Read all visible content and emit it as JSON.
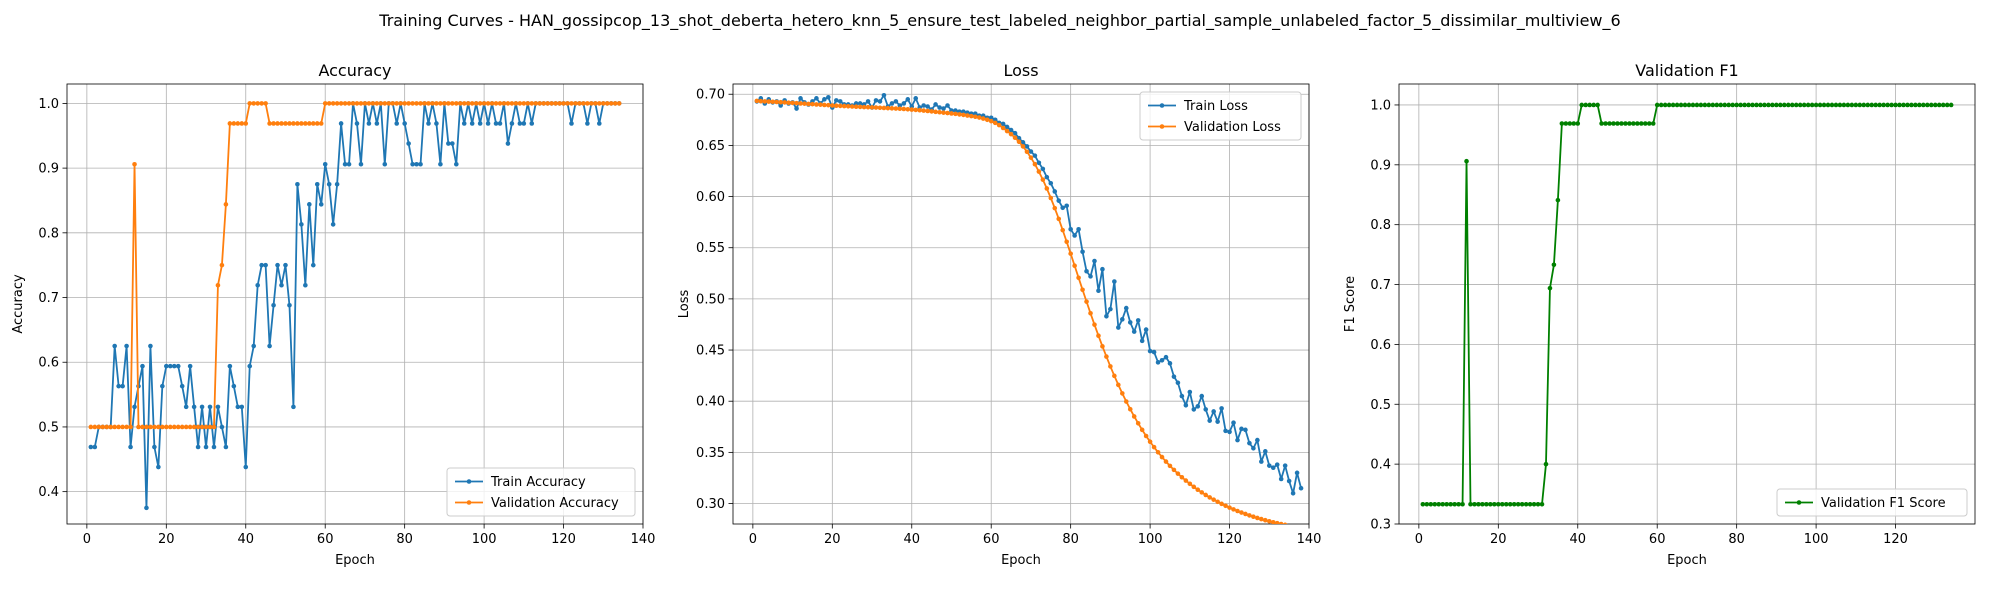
{
  "suptitle": "Training Curves - HAN_gossipcop_13_shot_deberta_hetero_knn_5_ensure_test_labeled_neighbor_partial_sample_unlabeled_factor_5_dissimilar_multiview_6",
  "colors": {
    "train": "#1f77b4",
    "val": "#ff7f0e",
    "f1": "#008000",
    "grid": "#b0b0b0"
  },
  "chart_data": [
    {
      "type": "line",
      "title": "Accuracy",
      "xlabel": "Epoch",
      "ylabel": "Accuracy",
      "xlim": [
        -5,
        140
      ],
      "ylim": [
        0.35,
        1.03
      ],
      "xticks": [
        0,
        20,
        40,
        60,
        80,
        100,
        120,
        140
      ],
      "yticks": [
        0.4,
        0.5,
        0.6,
        0.7,
        0.8,
        0.9,
        1.0
      ],
      "ytick_labels": [
        "0.4",
        "0.5",
        "0.6",
        "0.7",
        "0.8",
        "0.9",
        "1.0"
      ],
      "grid": true,
      "legend": "lower-right",
      "series": [
        {
          "name": "Train Accuracy",
          "color": "#1f77b4",
          "x_start": 1,
          "values": [
            0.469,
            0.469,
            0.5,
            0.5,
            0.5,
            0.5,
            0.625,
            0.563,
            0.563,
            0.625,
            0.469,
            0.531,
            0.563,
            0.594,
            0.375,
            0.625,
            0.469,
            0.438,
            0.563,
            0.594,
            0.594,
            0.594,
            0.594,
            0.563,
            0.531,
            0.594,
            0.531,
            0.469,
            0.531,
            0.469,
            0.531,
            0.469,
            0.531,
            0.5,
            0.469,
            0.594,
            0.563,
            0.531,
            0.531,
            0.438,
            0.594,
            0.625,
            0.719,
            0.75,
            0.75,
            0.625,
            0.688,
            0.75,
            0.719,
            0.75,
            0.688,
            0.531,
            0.875,
            0.813,
            0.719,
            0.844,
            0.75,
            0.875,
            0.844,
            0.906,
            0.875,
            0.813,
            0.875,
            0.969,
            0.906,
            0.906,
            1.0,
            0.969,
            0.906,
            1.0,
            0.969,
            1.0,
            0.969,
            1.0,
            0.906,
            1.0,
            1.0,
            0.969,
            1.0,
            0.969,
            0.938,
            0.906,
            0.906,
            0.906,
            1.0,
            0.969,
            1.0,
            0.969,
            0.906,
            1.0,
            0.938,
            0.938,
            0.906,
            1.0,
            0.969,
            1.0,
            0.969,
            1.0,
            0.969,
            1.0,
            0.969,
            1.0,
            0.969,
            0.969,
            1.0,
            0.938,
            0.969,
            1.0,
            0.969,
            0.969,
            1.0,
            0.969,
            1.0,
            1.0,
            1.0,
            1.0,
            1.0,
            1.0,
            1.0,
            1.0,
            1.0,
            0.969,
            1.0,
            1.0,
            1.0,
            0.969,
            1.0,
            1.0,
            0.969,
            1.0,
            1.0,
            1.0,
            1.0,
            1.0
          ]
        },
        {
          "name": "Validation Accuracy",
          "color": "#ff7f0e",
          "x_start": 1,
          "values": [
            0.5,
            0.5,
            0.5,
            0.5,
            0.5,
            0.5,
            0.5,
            0.5,
            0.5,
            0.5,
            0.5,
            0.906,
            0.5,
            0.5,
            0.5,
            0.5,
            0.5,
            0.5,
            0.5,
            0.5,
            0.5,
            0.5,
            0.5,
            0.5,
            0.5,
            0.5,
            0.5,
            0.5,
            0.5,
            0.5,
            0.5,
            0.5,
            0.719,
            0.75,
            0.844,
            0.969,
            0.969,
            0.969,
            0.969,
            0.969,
            1.0,
            1.0,
            1.0,
            1.0,
            1.0,
            0.969,
            0.969,
            0.969,
            0.969,
            0.969,
            0.969,
            0.969,
            0.969,
            0.969,
            0.969,
            0.969,
            0.969,
            0.969,
            0.969,
            1.0,
            1.0,
            1.0,
            1.0,
            1.0,
            1.0,
            1.0,
            1.0,
            1.0,
            1.0,
            1.0,
            1.0,
            1.0,
            1.0,
            1.0,
            1.0,
            1.0,
            1.0,
            1.0,
            1.0,
            1.0,
            1.0,
            1.0,
            1.0,
            1.0,
            1.0,
            1.0,
            1.0,
            1.0,
            1.0,
            1.0,
            1.0,
            1.0,
            1.0,
            1.0,
            1.0,
            1.0,
            1.0,
            1.0,
            1.0,
            1.0,
            1.0,
            1.0,
            1.0,
            1.0,
            1.0,
            1.0,
            1.0,
            1.0,
            1.0,
            1.0,
            1.0,
            1.0,
            1.0,
            1.0,
            1.0,
            1.0,
            1.0,
            1.0,
            1.0,
            1.0,
            1.0,
            1.0,
            1.0,
            1.0,
            1.0,
            1.0,
            1.0,
            1.0,
            1.0,
            1.0,
            1.0,
            1.0,
            1.0,
            1.0
          ]
        }
      ]
    },
    {
      "type": "line",
      "title": "Loss",
      "xlabel": "Epoch",
      "ylabel": "Loss",
      "xlim": [
        -5,
        140
      ],
      "ylim": [
        0.28,
        0.71
      ],
      "xticks": [
        0,
        20,
        40,
        60,
        80,
        100,
        120,
        140
      ],
      "yticks": [
        0.3,
        0.35,
        0.4,
        0.45,
        0.5,
        0.55,
        0.6,
        0.65,
        0.7
      ],
      "ytick_labels": [
        "0.30",
        "0.35",
        "0.40",
        "0.45",
        "0.50",
        "0.55",
        "0.60",
        "0.65",
        "0.70"
      ],
      "grid": true,
      "legend": "upper-right",
      "series": [
        {
          "name": "Train Loss",
          "color": "#1f77b4",
          "x_start": 1,
          "values": [
            0.693,
            0.696,
            0.691,
            0.695,
            0.692,
            0.693,
            0.689,
            0.694,
            0.691,
            0.692,
            0.686,
            0.696,
            0.692,
            0.69,
            0.693,
            0.696,
            0.691,
            0.695,
            0.697,
            0.687,
            0.694,
            0.693,
            0.69,
            0.69,
            0.689,
            0.691,
            0.691,
            0.69,
            0.693,
            0.687,
            0.694,
            0.693,
            0.699,
            0.688,
            0.691,
            0.693,
            0.689,
            0.691,
            0.695,
            0.688,
            0.696,
            0.687,
            0.689,
            0.688,
            0.685,
            0.69,
            0.687,
            0.686,
            0.689,
            0.684,
            0.684,
            0.683,
            0.683,
            0.682,
            0.681,
            0.681,
            0.679,
            0.679,
            0.677,
            0.677,
            0.675,
            0.672,
            0.671,
            0.668,
            0.665,
            0.662,
            0.657,
            0.653,
            0.649,
            0.644,
            0.64,
            0.633,
            0.627,
            0.619,
            0.613,
            0.605,
            0.596,
            0.589,
            0.591,
            0.568,
            0.562,
            0.568,
            0.546,
            0.527,
            0.522,
            0.537,
            0.508,
            0.529,
            0.483,
            0.49,
            0.517,
            0.472,
            0.48,
            0.491,
            0.477,
            0.468,
            0.479,
            0.459,
            0.47,
            0.449,
            0.448,
            0.438,
            0.44,
            0.443,
            0.437,
            0.424,
            0.418,
            0.405,
            0.396,
            0.409,
            0.392,
            0.395,
            0.405,
            0.392,
            0.381,
            0.39,
            0.38,
            0.393,
            0.371,
            0.37,
            0.379,
            0.362,
            0.373,
            0.372,
            0.359,
            0.354,
            0.362,
            0.341,
            0.351,
            0.337,
            0.335,
            0.338,
            0.324,
            0.337,
            0.322,
            0.31,
            0.33,
            0.315
          ]
        },
        {
          "name": "Validation Loss",
          "color": "#ff7f0e",
          "x_start": 1,
          "values": [
            0.6935,
            0.6932,
            0.693,
            0.6928,
            0.6926,
            0.6924,
            0.6922,
            0.692,
            0.6917,
            0.6915,
            0.6913,
            0.691,
            0.6908,
            0.6905,
            0.6903,
            0.69,
            0.6898,
            0.6895,
            0.6893,
            0.689,
            0.6888,
            0.6886,
            0.6884,
            0.6882,
            0.688,
            0.6878,
            0.6876,
            0.6874,
            0.6873,
            0.6871,
            0.687,
            0.6868,
            0.6866,
            0.6864,
            0.6862,
            0.686,
            0.6858,
            0.6856,
            0.6853,
            0.685,
            0.6847,
            0.6844,
            0.684,
            0.6836,
            0.6832,
            0.6828,
            0.6824,
            0.682,
            0.6816,
            0.6812,
            0.6808,
            0.6803,
            0.6798,
            0.6792,
            0.6786,
            0.678,
            0.6772,
            0.6762,
            0.675,
            0.6737,
            0.672,
            0.6698,
            0.667,
            0.664,
            0.661,
            0.6575,
            0.6535,
            0.649,
            0.6438,
            0.638,
            0.6316,
            0.6244,
            0.6165,
            0.6079,
            0.5986,
            0.5887,
            0.5782,
            0.5672,
            0.5558,
            0.5442,
            0.5324,
            0.5206,
            0.5089,
            0.4973,
            0.4859,
            0.4748,
            0.464,
            0.4536,
            0.4436,
            0.434,
            0.4248,
            0.416,
            0.4076,
            0.3997,
            0.3922,
            0.3851,
            0.3784,
            0.372,
            0.366,
            0.3604,
            0.3551,
            0.3501,
            0.3454,
            0.341,
            0.3368,
            0.3329,
            0.3292,
            0.3257,
            0.3224,
            0.3193,
            0.3163,
            0.3135,
            0.3109,
            0.3084,
            0.306,
            0.3038,
            0.3017,
            0.2997,
            0.2978,
            0.296,
            0.2943,
            0.2927,
            0.2912,
            0.2898,
            0.2884,
            0.2871,
            0.2859,
            0.2848,
            0.2837,
            0.2827,
            0.2817,
            0.2808,
            0.28,
            0.2792
          ]
        }
      ]
    },
    {
      "type": "line",
      "title": "Validation F1",
      "xlabel": "Epoch",
      "ylabel": "F1 Score",
      "xlim": [
        -5,
        140
      ],
      "ylim": [
        0.3,
        1.035
      ],
      "xticks": [
        0,
        20,
        40,
        60,
        80,
        100,
        120
      ],
      "yticks": [
        0.3,
        0.4,
        0.5,
        0.6,
        0.7,
        0.8,
        0.9,
        1.0
      ],
      "ytick_labels": [
        "0.3",
        "0.4",
        "0.5",
        "0.6",
        "0.7",
        "0.8",
        "0.9",
        "1.0"
      ],
      "grid": true,
      "legend": "lower-right",
      "series": [
        {
          "name": "Validation F1 Score",
          "color": "#008000",
          "x_start": 1,
          "values": [
            0.333,
            0.333,
            0.333,
            0.333,
            0.333,
            0.333,
            0.333,
            0.333,
            0.333,
            0.333,
            0.333,
            0.906,
            0.333,
            0.333,
            0.333,
            0.333,
            0.333,
            0.333,
            0.333,
            0.333,
            0.333,
            0.333,
            0.333,
            0.333,
            0.333,
            0.333,
            0.333,
            0.333,
            0.333,
            0.333,
            0.333,
            0.4,
            0.694,
            0.733,
            0.841,
            0.969,
            0.969,
            0.969,
            0.969,
            0.969,
            1.0,
            1.0,
            1.0,
            1.0,
            1.0,
            0.969,
            0.969,
            0.969,
            0.969,
            0.969,
            0.969,
            0.969,
            0.969,
            0.969,
            0.969,
            0.969,
            0.969,
            0.969,
            0.969,
            1.0,
            1.0,
            1.0,
            1.0,
            1.0,
            1.0,
            1.0,
            1.0,
            1.0,
            1.0,
            1.0,
            1.0,
            1.0,
            1.0,
            1.0,
            1.0,
            1.0,
            1.0,
            1.0,
            1.0,
            1.0,
            1.0,
            1.0,
            1.0,
            1.0,
            1.0,
            1.0,
            1.0,
            1.0,
            1.0,
            1.0,
            1.0,
            1.0,
            1.0,
            1.0,
            1.0,
            1.0,
            1.0,
            1.0,
            1.0,
            1.0,
            1.0,
            1.0,
            1.0,
            1.0,
            1.0,
            1.0,
            1.0,
            1.0,
            1.0,
            1.0,
            1.0,
            1.0,
            1.0,
            1.0,
            1.0,
            1.0,
            1.0,
            1.0,
            1.0,
            1.0,
            1.0,
            1.0,
            1.0,
            1.0,
            1.0,
            1.0,
            1.0,
            1.0,
            1.0,
            1.0,
            1.0,
            1.0,
            1.0,
            1.0
          ]
        }
      ]
    }
  ]
}
